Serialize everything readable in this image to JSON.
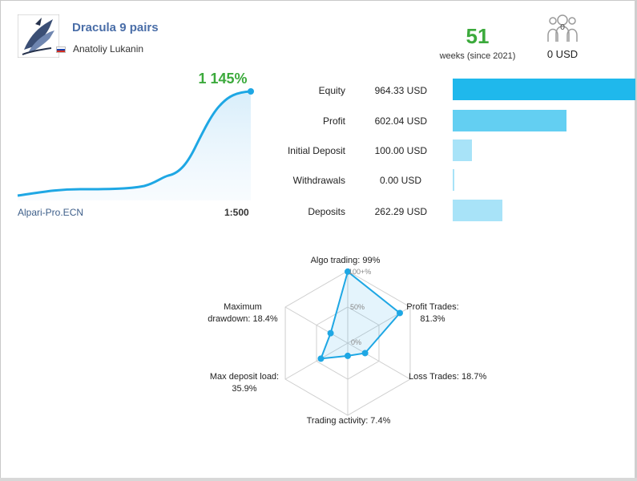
{
  "signal": {
    "name": "Dracula 9 pairs",
    "author": "Anatoliy Lukanin",
    "author_flag": "russia-flag-icon"
  },
  "summary": {
    "weeks_value": "51",
    "weeks_label": "weeks (since 2021)",
    "subscribers_count": "0",
    "subscription_price": "0 USD"
  },
  "growth": {
    "percent_label": "1 145%",
    "broker": "Alpari-Pro.ECN",
    "leverage": "1:500"
  },
  "stats": [
    {
      "label": "Equity",
      "value": "964.33 USD",
      "amount": 964.33
    },
    {
      "label": "Profit",
      "value": "602.04 USD",
      "amount": 602.04
    },
    {
      "label": "Initial Deposit",
      "value": "100.00 USD",
      "amount": 100.0
    },
    {
      "label": "Withdrawals",
      "value": "0.00 USD",
      "amount": 0.0
    },
    {
      "label": "Deposits",
      "value": "262.29 USD",
      "amount": 262.29
    }
  ],
  "radar": {
    "labels": [
      {
        "line1": "Algo trading: 99%",
        "line2": ""
      },
      {
        "line1": "Profit Trades:",
        "line2": "81.3%"
      },
      {
        "line1": "Loss Trades: 18.7%",
        "line2": ""
      },
      {
        "line1": "Trading activity: 7.4%",
        "line2": ""
      },
      {
        "line1": "Max deposit load:",
        "line2": "35.9%"
      },
      {
        "line1": "Maximum",
        "line2": "drawdown: 18.4%"
      }
    ],
    "values": [
      99,
      81.3,
      18.7,
      7.4,
      35.9,
      18.4
    ],
    "ticks": [
      "100+%",
      "50%",
      "0%"
    ]
  },
  "colors": {
    "accent_green": "#3caa3c",
    "line_blue": "#1ea7e4",
    "bar_equity": "#1fb8ec",
    "bar_profit": "#63cff2",
    "bar_light": "#a8e3f8",
    "link_blue": "#4a6ea8"
  }
}
